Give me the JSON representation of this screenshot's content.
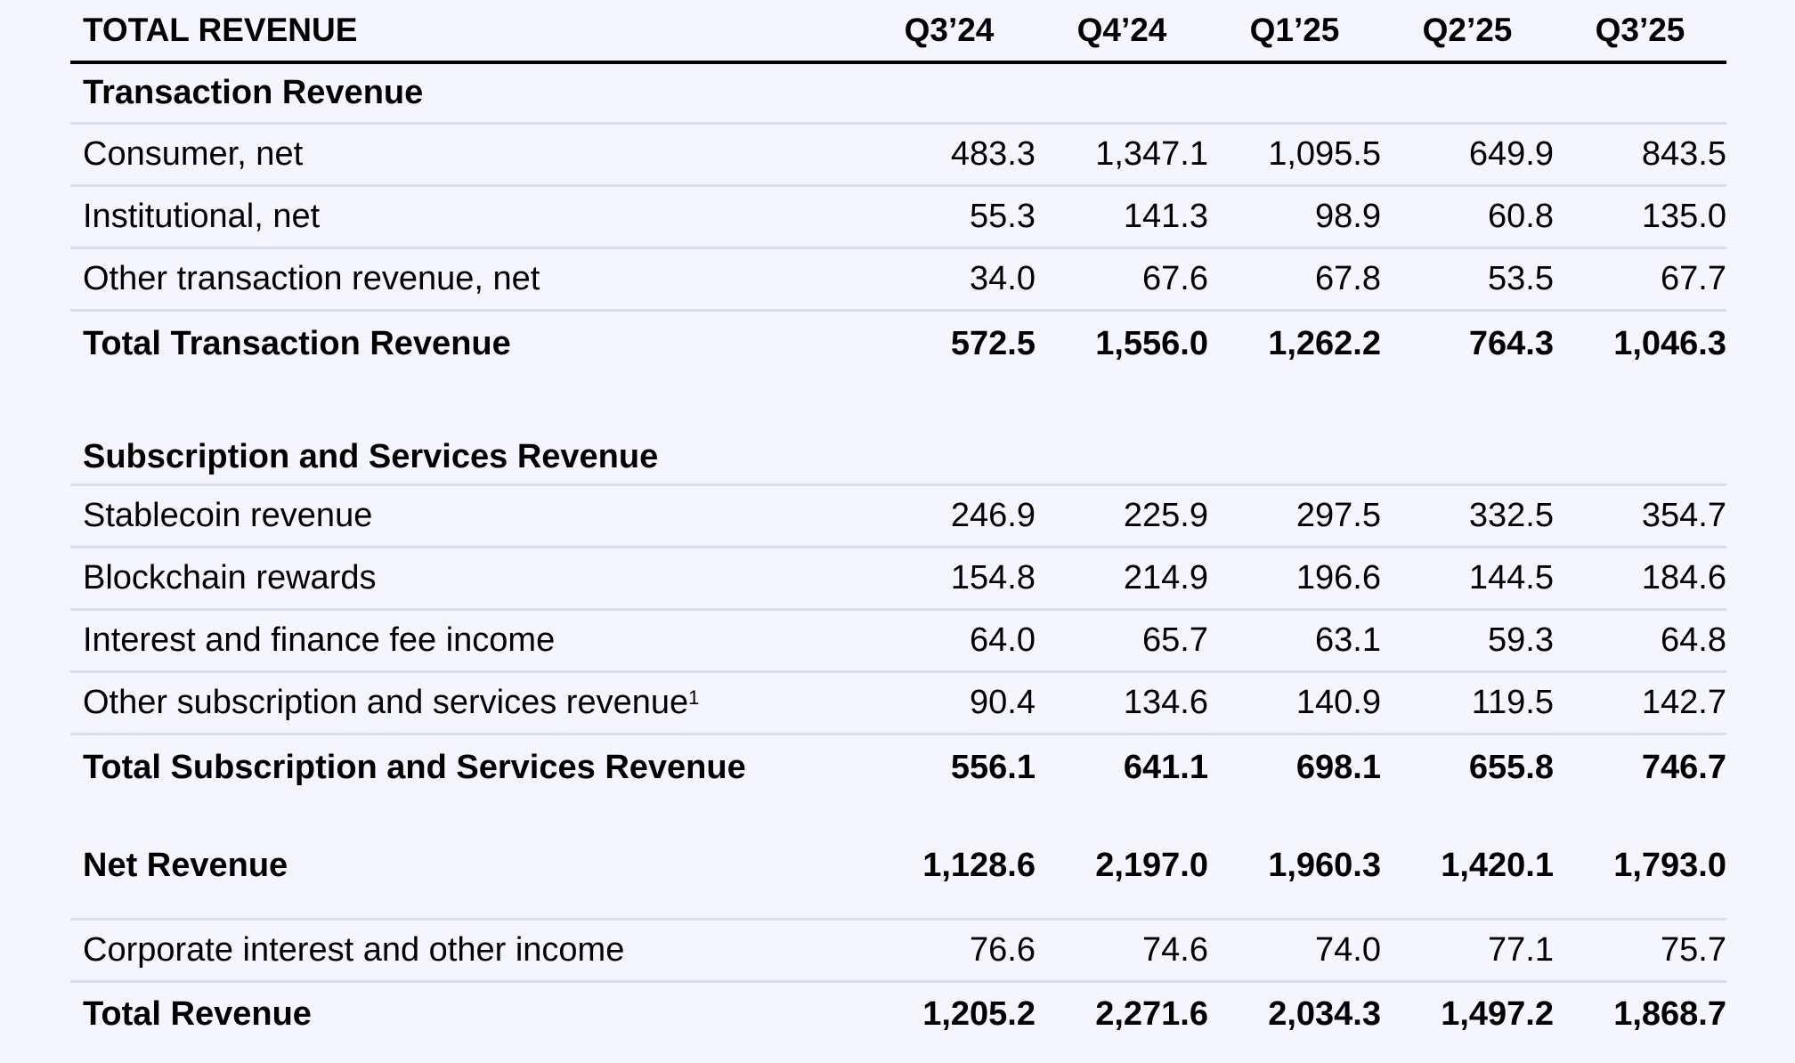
{
  "header": {
    "title": "TOTAL REVENUE",
    "periods": [
      "Q3’24",
      "Q4’24",
      "Q1’25",
      "Q2’25",
      "Q3’25"
    ]
  },
  "sections": {
    "transaction": {
      "heading": "Transaction Revenue",
      "rows": [
        {
          "label": "Consumer, net",
          "values": [
            "483.3",
            "1,347.1",
            "1,095.5",
            "649.9",
            "843.5"
          ]
        },
        {
          "label": "Institutional, net",
          "values": [
            "55.3",
            "141.3",
            "98.9",
            "60.8",
            "135.0"
          ]
        },
        {
          "label": "Other transaction revenue, net",
          "values": [
            "34.0",
            "67.6",
            "67.8",
            "53.5",
            "67.7"
          ]
        }
      ],
      "total": {
        "label": "Total Transaction Revenue",
        "values": [
          "572.5",
          "1,556.0",
          "1,262.2",
          "764.3",
          "1,046.3"
        ]
      }
    },
    "subscription": {
      "heading": "Subscription and Services Revenue",
      "rows": [
        {
          "label": "Stablecoin revenue",
          "values": [
            "246.9",
            "225.9",
            "297.5",
            "332.5",
            "354.7"
          ]
        },
        {
          "label": "Blockchain rewards",
          "values": [
            "154.8",
            "214.9",
            "196.6",
            "144.5",
            "184.6"
          ]
        },
        {
          "label": "Interest and finance fee income",
          "values": [
            "64.0",
            "65.7",
            "63.1",
            "59.3",
            "64.8"
          ]
        },
        {
          "label": "Other subscription and services revenue",
          "footnote": "1",
          "values": [
            "90.4",
            "134.6",
            "140.9",
            "119.5",
            "142.7"
          ]
        }
      ],
      "total": {
        "label": "Total Subscription and Services Revenue",
        "values": [
          "556.1",
          "641.1",
          "698.1",
          "655.8",
          "746.7"
        ]
      }
    }
  },
  "net_revenue": {
    "label": "Net Revenue",
    "values": [
      "1,128.6",
      "2,197.0",
      "1,960.3",
      "1,420.1",
      "1,793.0"
    ]
  },
  "corporate": {
    "label": "Corporate interest and other income",
    "values": [
      "76.6",
      "74.6",
      "74.0",
      "77.1",
      "75.7"
    ]
  },
  "total_revenue": {
    "label": "Total Revenue",
    "values": [
      "1,205.2",
      "2,271.6",
      "2,034.3",
      "1,497.2",
      "1,868.7"
    ]
  },
  "colors": {
    "background": "#f4f5ff",
    "rule": "#dcdde6",
    "text": "#000000"
  }
}
